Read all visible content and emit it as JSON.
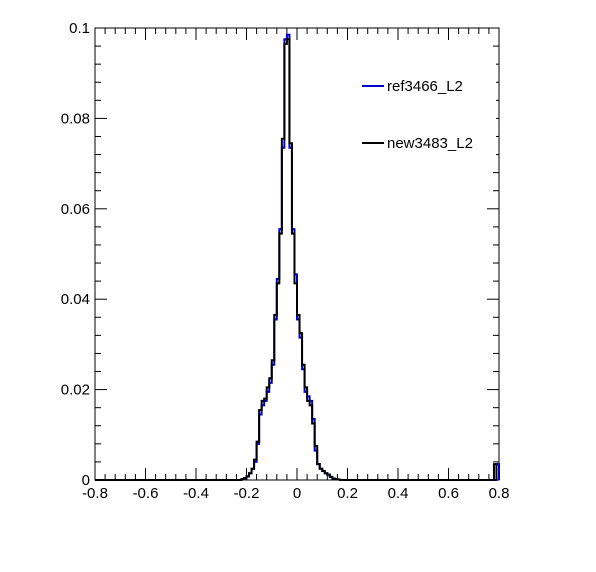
{
  "chart_data": {
    "type": "histogram",
    "title": "",
    "xlabel": "",
    "ylabel": "",
    "xlim": [
      -0.8,
      0.8
    ],
    "ylim": [
      0,
      0.1
    ],
    "x_ticks": [
      "-0.8",
      "-0.6",
      "-0.4",
      "-0.2",
      "0",
      "0.2",
      "0.4",
      "0.6",
      "0.8"
    ],
    "y_ticks": [
      "0",
      "0.02",
      "0.04",
      "0.06",
      "0.08",
      "0.1"
    ],
    "grid": false,
    "legend_position": "top-right",
    "bin_edges_start": -0.8,
    "bin_width": 0.01,
    "series": [
      {
        "name": "ref3466_L2",
        "color": "#0000cc",
        "values": [
          0,
          0,
          0,
          0,
          0,
          0,
          0,
          0,
          0,
          0,
          0,
          0,
          0,
          0,
          0,
          0,
          0,
          0,
          0,
          0,
          0,
          0,
          0,
          0,
          0,
          0,
          0,
          0,
          0,
          0,
          0,
          0,
          0,
          0,
          0,
          0,
          0,
          0,
          0,
          0,
          0,
          0,
          0,
          0,
          0,
          0,
          0,
          0,
          0,
          0,
          0,
          0,
          0,
          0,
          0,
          0,
          0,
          0,
          0.0002,
          0.0004,
          0.0008,
          0.0015,
          0.0025,
          0.004,
          0.008,
          0.0145,
          0.0165,
          0.0175,
          0.0195,
          0.0215,
          0.0255,
          0.0355,
          0.0445,
          0.0555,
          0.0735,
          0.0975,
          0.0985,
          0.0735,
          0.0555,
          0.0455,
          0.0355,
          0.0315,
          0.0245,
          0.0195,
          0.0185,
          0.0175,
          0.0135,
          0.0065,
          0.0035,
          0.0025,
          0.002,
          0.0015,
          0.0012,
          0.0007,
          0.0003,
          0.0002,
          0.0001,
          0,
          0,
          0,
          0,
          0,
          0,
          0,
          0,
          0,
          0,
          0,
          0,
          0,
          0,
          0,
          0,
          0,
          0,
          0,
          0,
          0,
          0,
          0,
          0,
          0,
          0,
          0,
          0,
          0,
          0,
          0,
          0,
          0,
          0,
          0,
          0,
          0,
          0,
          0,
          0,
          0,
          0,
          0,
          0,
          0,
          0,
          0,
          0,
          0,
          0,
          0,
          0,
          0,
          0,
          0,
          0,
          0,
          0,
          0,
          0,
          0,
          0,
          0.0035
        ]
      },
      {
        "name": "new3483_L2",
        "color": "#000000",
        "values": [
          0,
          0,
          0,
          0,
          0,
          0,
          0,
          0,
          0,
          0,
          0,
          0,
          0,
          0,
          0,
          0,
          0,
          0,
          0,
          0,
          0,
          0,
          0,
          0,
          0,
          0,
          0,
          0,
          0,
          0,
          0,
          0,
          0,
          0,
          0,
          0,
          0,
          0,
          0,
          0,
          0,
          0,
          0,
          0,
          0,
          0,
          0,
          0,
          0,
          0,
          0,
          0,
          0,
          0,
          0,
          0,
          0,
          0,
          0.0002,
          0.0004,
          0.0008,
          0.0015,
          0.0025,
          0.0045,
          0.0085,
          0.0155,
          0.0175,
          0.018,
          0.0205,
          0.0225,
          0.0265,
          0.0365,
          0.0435,
          0.0545,
          0.0755,
          0.0965,
          0.0975,
          0.0745,
          0.0545,
          0.0435,
          0.0365,
          0.0325,
          0.0255,
          0.0205,
          0.0175,
          0.0165,
          0.0125,
          0.0075,
          0.0035,
          0.0025,
          0.002,
          0.0015,
          0.0012,
          0.0007,
          0.0003,
          0.0002,
          0.0001,
          0,
          0,
          0,
          0,
          0,
          0,
          0,
          0,
          0,
          0,
          0,
          0,
          0,
          0,
          0,
          0,
          0,
          0,
          0,
          0,
          0,
          0,
          0,
          0,
          0,
          0,
          0,
          0,
          0,
          0,
          0,
          0,
          0,
          0,
          0,
          0,
          0,
          0,
          0,
          0,
          0,
          0,
          0,
          0,
          0,
          0,
          0,
          0,
          0,
          0,
          0,
          0,
          0,
          0,
          0,
          0,
          0,
          0,
          0,
          0,
          0,
          0.0035
        ]
      }
    ]
  }
}
